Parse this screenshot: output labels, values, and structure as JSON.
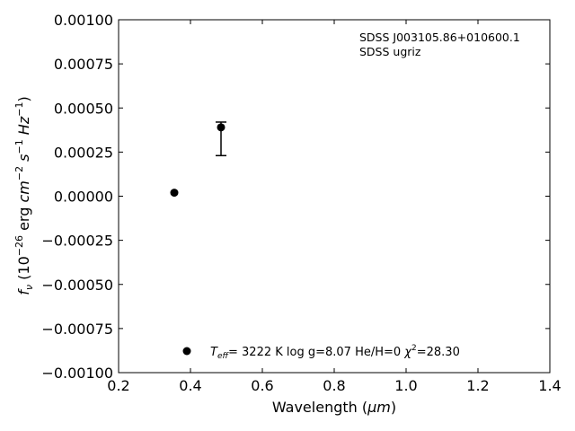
{
  "chart_data": {
    "type": "scatter",
    "xlabel_main": "Wavelength (",
    "xlabel_unit": "μm",
    "xlabel_end": ")",
    "ylabel_parts": {
      "f": "f",
      "nu": "ν",
      "open": " (10",
      "exp1": "−26",
      "erg": " erg ",
      "cm": "cm",
      "exp2": "−2",
      "s": " s",
      "exp3": "−1",
      "hz": " Hz",
      "exp4": "−1",
      "close": ")"
    },
    "xlim": [
      0.2,
      1.4
    ],
    "ylim": [
      -0.001,
      0.001
    ],
    "xticks": [
      0.2,
      0.4,
      0.6,
      0.8,
      1.0,
      1.2,
      1.4
    ],
    "xtick_labels": [
      "0.2",
      "0.4",
      "0.6",
      "0.8",
      "1.0",
      "1.2",
      "1.4"
    ],
    "yticks": [
      -0.001,
      -0.00075,
      -0.0005,
      -0.00025,
      0.0,
      0.00025,
      0.0005,
      0.00075,
      0.001
    ],
    "ytick_labels": [
      "−0.00100",
      "−0.00075",
      "−0.00050",
      "−0.00025",
      "0.00000",
      "0.00025",
      "0.00050",
      "0.00075",
      "0.00100"
    ],
    "grid": false,
    "series": [
      {
        "points": [
          {
            "x": 0.355,
            "y": 2e-05,
            "err_low": null,
            "err_high": null
          },
          {
            "x": 0.485,
            "y": 0.00039,
            "err_low": 0.00023,
            "err_high": 0.00042
          }
        ]
      }
    ],
    "annotation": {
      "line1": "SDSS J003105.86+010600.1",
      "line2": "SDSS ugriz"
    },
    "legend": {
      "placement": "lower-center",
      "teff_T": "T",
      "teff_sub": "eff",
      "teff_value": "=  3222 K  log g=8.07  He/H=0  ",
      "chi": "χ",
      "chi_exp": "2",
      "chi_value": "=28.30"
    }
  }
}
